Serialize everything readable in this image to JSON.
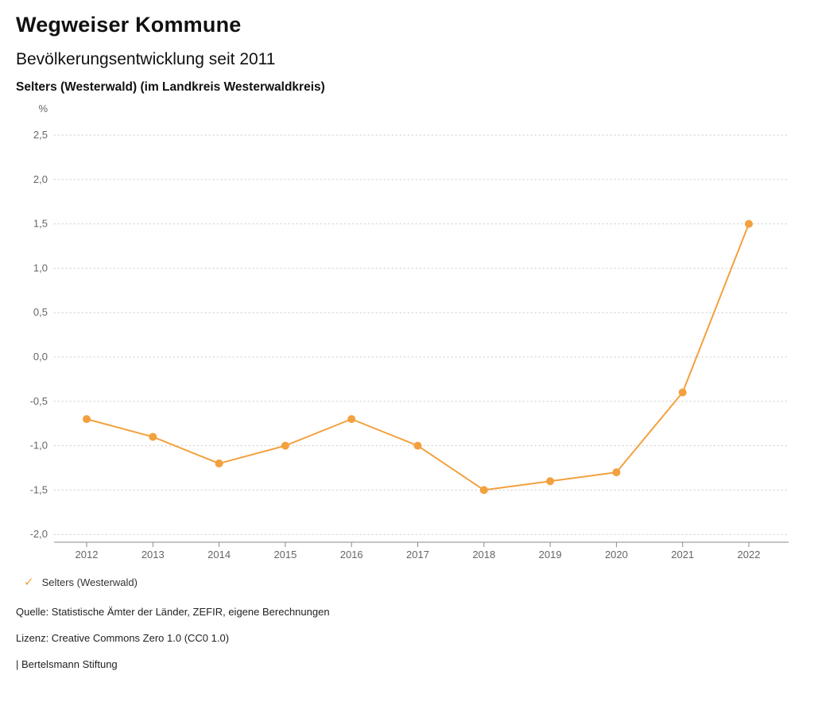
{
  "header": {
    "title": "Wegweiser Kommune",
    "subtitle": "Bevölkerungsentwicklung seit 2011",
    "region": "Selters (Westerwald) (im Landkreis Westerwaldkreis)"
  },
  "chart_data": {
    "type": "line",
    "title": "Bevölkerungsentwicklung seit 2011",
    "xlabel": "",
    "ylabel": "%",
    "categories": [
      "2012",
      "2013",
      "2014",
      "2015",
      "2016",
      "2017",
      "2018",
      "2019",
      "2020",
      "2021",
      "2022"
    ],
    "series": [
      {
        "name": "Selters (Westerwald)",
        "color": "#f2a13e",
        "values": [
          -0.7,
          -0.9,
          -1.2,
          -1.0,
          -0.7,
          -1.0,
          -1.5,
          -1.4,
          -1.3,
          -0.4,
          1.5
        ]
      }
    ],
    "ylim": [
      -2.0,
      2.5
    ],
    "yticks": [
      2.5,
      2.0,
      1.5,
      1.0,
      0.5,
      0.0,
      -0.5,
      -1.0,
      -1.5,
      -2.0
    ],
    "ytick_labels": [
      "2,5",
      "2,0",
      "1,5",
      "1,0",
      "0,5",
      "0,0",
      "-0,5",
      "-1,0",
      "-1,5",
      "-2,0"
    ],
    "grid": "horizontal-dotted",
    "legend_position": "bottom-left"
  },
  "legend": {
    "items": [
      {
        "label": "Selters (Westerwald)",
        "color": "#f2a13e",
        "icon": "check-icon"
      }
    ]
  },
  "footer": {
    "source": "Quelle: Statistische Ämter der Länder, ZEFIR, eigene Berechnungen",
    "license": "Lizenz: Creative Commons Zero 1.0 (CC0 1.0)",
    "brand": "| Bertelsmann Stiftung"
  },
  "colors": {
    "accent": "#f2a13e",
    "gridline": "#cfcfcf",
    "axis": "#888888",
    "axis_label": "#666666"
  }
}
